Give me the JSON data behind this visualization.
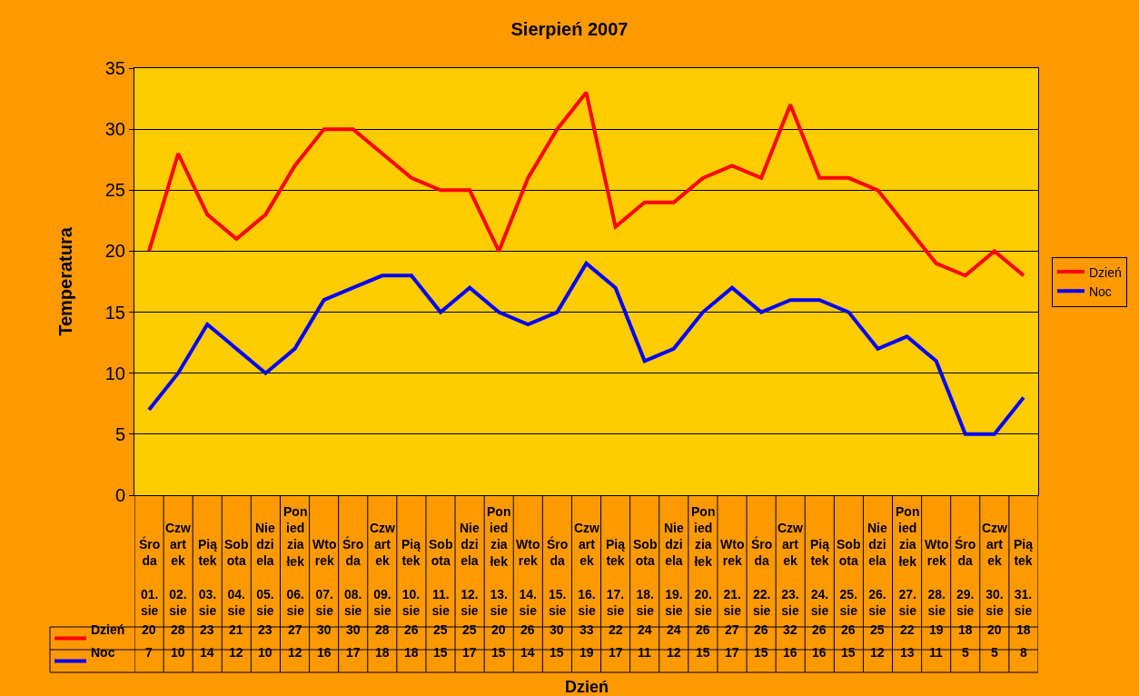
{
  "chart_data": {
    "type": "line",
    "title": "Sierpień 2007",
    "annotations": [
      "Dzień"
    ],
    "ylabel": "Temperatura",
    "categories": [
      "Środa 01. sie",
      "Czwartek 02. sie",
      "Piątek 03. sie",
      "Sobota 04. sie",
      "Niedziela 05. sie",
      "Poniedziałek 06. sie",
      "Wtorek 07. sie",
      "Środa 08. sie",
      "Czwartek 09. sie",
      "Piątek 10. sie",
      "Sobota 11. sie",
      "Niedziela 12. sie",
      "Poniedziałek 13. sie",
      "Wtorek 14. sie",
      "Środa 15. sie",
      "Czwartek 16. sie",
      "Piątek 17. sie",
      "Sobota 18. sie",
      "Niedziela 19. sie",
      "Poniedziałek 20. sie",
      "Wtorek 21. sie",
      "Środa 22. sie",
      "Czwartek 23. sie",
      "Piątek 24. sie",
      "Sobota 25. sie",
      "Niedziela 26. sie",
      "Poniedziałek 27. sie",
      "Wtorek 28. sie",
      "Środa 29. sie",
      "Czwartek 30. sie",
      "Piątek 31. sie"
    ],
    "series": [
      {
        "name": "Dzień",
        "color": "#ff0000",
        "values": [
          20,
          28,
          23,
          21,
          23,
          27,
          30,
          30,
          28,
          26,
          25,
          25,
          20,
          26,
          30,
          33,
          22,
          24,
          24,
          26,
          27,
          26,
          32,
          26,
          26,
          25,
          22,
          19,
          18,
          20,
          18
        ]
      },
      {
        "name": "Noc",
        "color": "#0000ff",
        "values": [
          7,
          10,
          14,
          12,
          10,
          12,
          16,
          17,
          18,
          18,
          15,
          17,
          15,
          14,
          15,
          19,
          17,
          11,
          12,
          15,
          17,
          15,
          16,
          16,
          15,
          12,
          13,
          11,
          5,
          5,
          8
        ]
      }
    ],
    "ylim": [
      0,
      35
    ],
    "yticks": [
      0,
      5,
      10,
      15,
      20,
      25,
      30,
      35
    ],
    "grid": "y",
    "legend": "right",
    "data_labels": true
  }
}
